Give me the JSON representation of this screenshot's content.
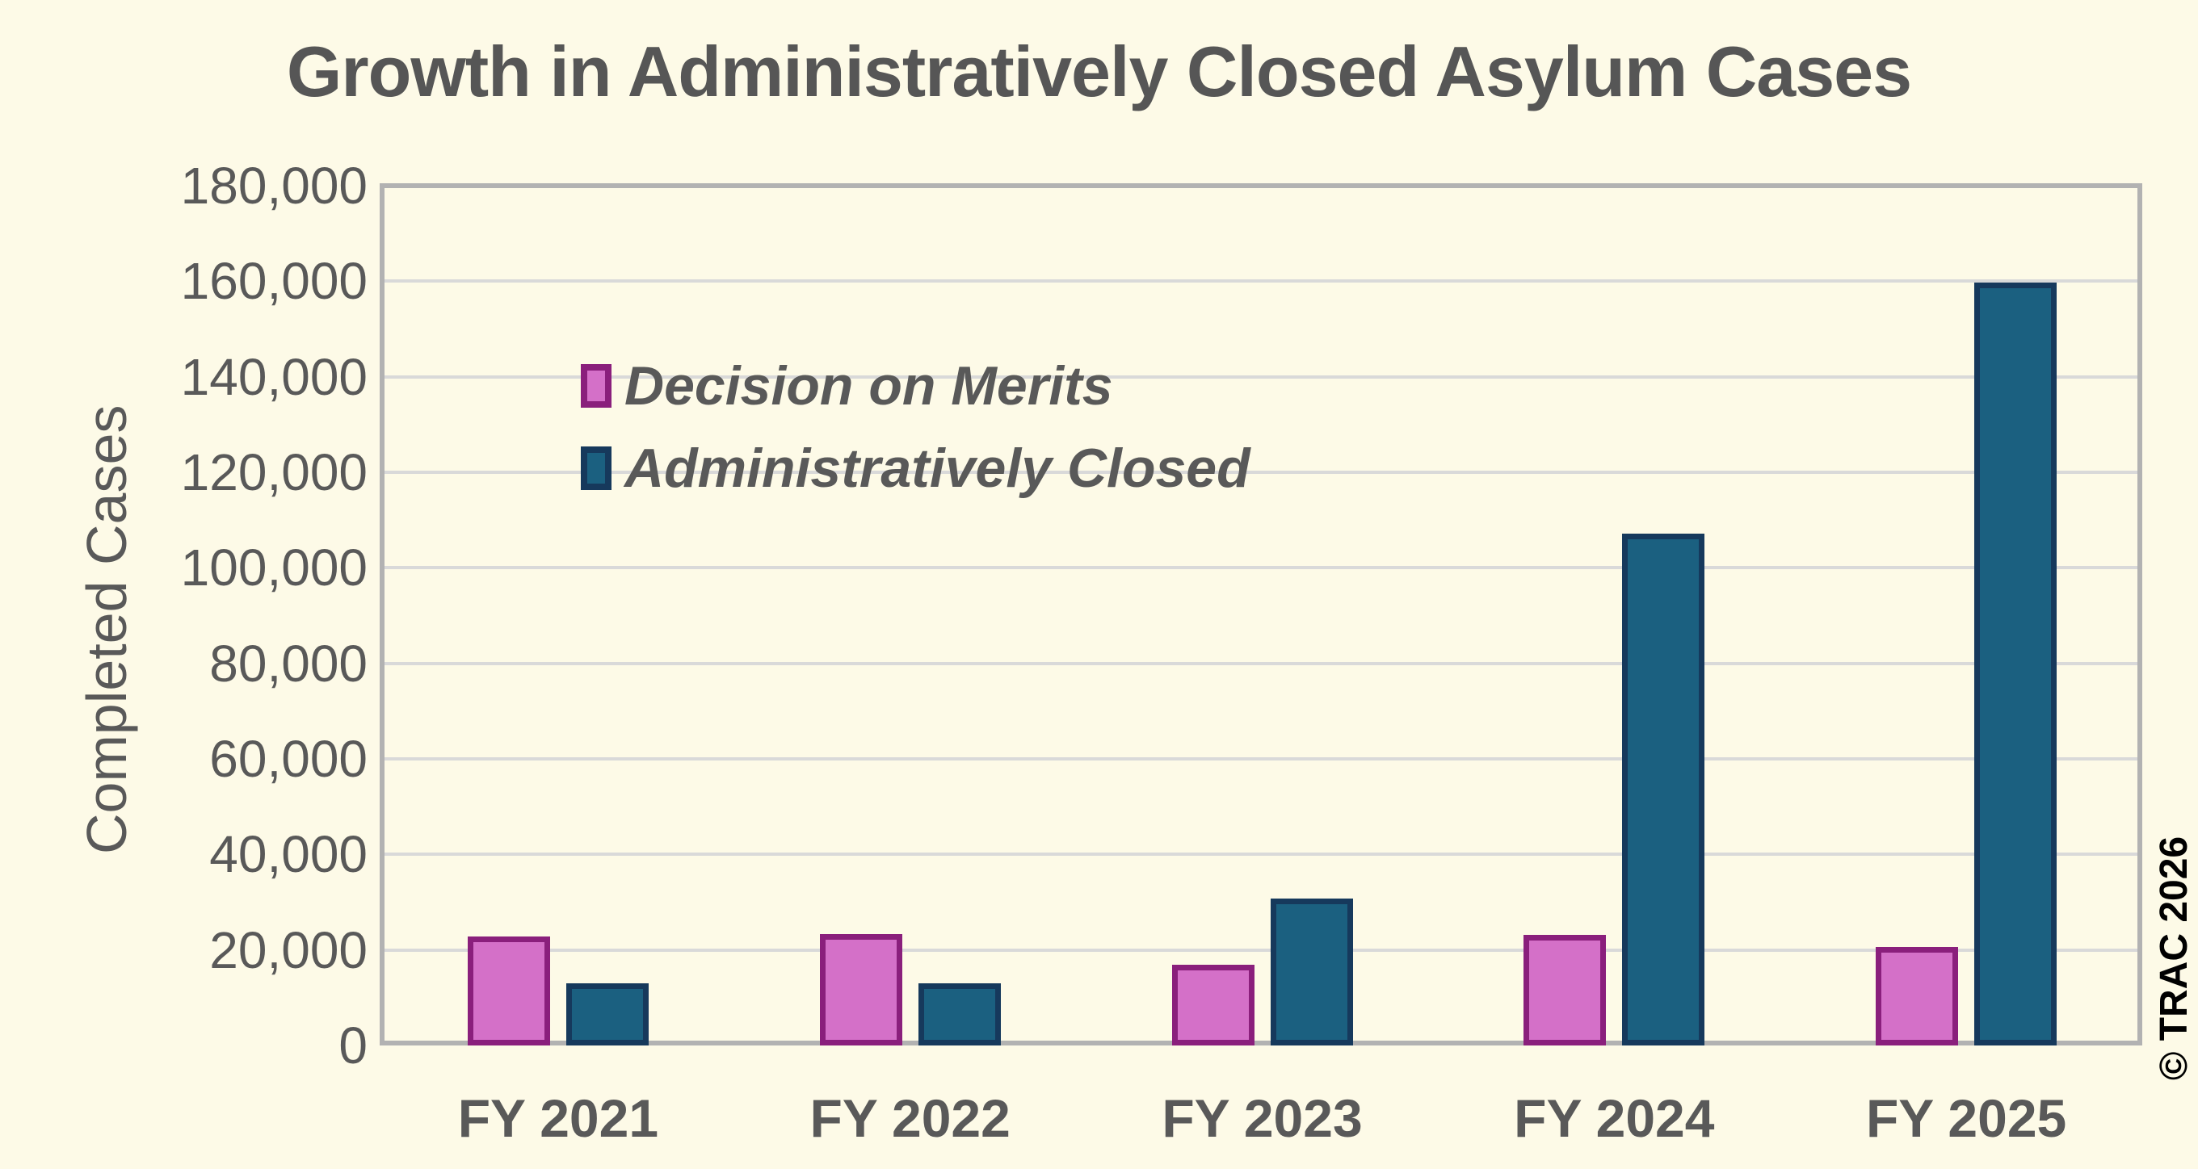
{
  "watermark": "© TRAC 2026",
  "colors": {
    "background": "#fdfae7",
    "text": "#595959",
    "gridline": "#d9d9d9",
    "frame": "#b2b2b2",
    "watermark_text": "#000000"
  },
  "chart_data": {
    "type": "bar",
    "title": "Growth in Administratively Closed Asylum Cases",
    "xlabel": "",
    "ylabel": "Completed Cases",
    "categories": [
      "FY 2021",
      "FY 2022",
      "FY 2023",
      "FY 2024",
      "FY 2025"
    ],
    "series": [
      {
        "name": "Decision on Merits",
        "color": "#d470c8",
        "border_color": "#8a1f7c",
        "values": [
          22800,
          23300,
          16900,
          23100,
          20700
        ]
      },
      {
        "name": "Administratively Closed",
        "color": "#1b6080",
        "border_color": "#16395c",
        "values": [
          13000,
          13000,
          30700,
          107100,
          159800
        ]
      }
    ],
    "ylim": [
      0,
      180000
    ],
    "ytick_step": 20000,
    "ytick_labels": [
      "0",
      "20,000",
      "40,000",
      "60,000",
      "80,000",
      "100,000",
      "120,000",
      "140,000",
      "160,000",
      "180,000"
    ],
    "grid": "horizontal",
    "legend_position": "upper-left-inside"
  }
}
